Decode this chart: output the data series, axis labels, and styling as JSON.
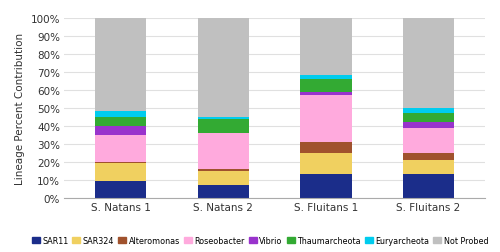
{
  "categories": [
    "S. Natans 1",
    "S. Natans 2",
    "S. Fluitans 1",
    "S. Fluitans 2"
  ],
  "series": {
    "SAR11": [
      9,
      7,
      13,
      13
    ],
    "SAR324": [
      10,
      8,
      12,
      8
    ],
    "Alteromonas": [
      1,
      1,
      6,
      4
    ],
    "Roseobacter": [
      15,
      20,
      26,
      14
    ],
    "Vibrio": [
      5,
      0,
      2,
      3
    ],
    "Thaumarcheota": [
      5,
      8,
      7,
      5
    ],
    "Euryarcheota": [
      3,
      1,
      2,
      3
    ],
    "Not Probed": [
      52,
      55,
      32,
      50
    ]
  },
  "colors": {
    "SAR11": "#1b2d8a",
    "SAR324": "#f0d060",
    "Alteromonas": "#a0522d",
    "Roseobacter": "#ffaadd",
    "Vibrio": "#9933cc",
    "Thaumarcheota": "#33aa33",
    "Euryarcheota": "#00ccee",
    "Not Probed": "#c0c0c0"
  },
  "ylabel": "Lineage Percent Contribution",
  "ylim": [
    0,
    100
  ],
  "ytick_labels": [
    "0%",
    "10%",
    "20%",
    "30%",
    "40%",
    "50%",
    "60%",
    "70%",
    "80%",
    "90%",
    "100%"
  ],
  "ytick_values": [
    0,
    10,
    20,
    30,
    40,
    50,
    60,
    70,
    80,
    90,
    100
  ],
  "bar_width": 0.5,
  "figsize": [
    5.0,
    2.53
  ],
  "dpi": 100,
  "background_color": "#ffffff",
  "grid_color": "#e0e0e0",
  "legend_order": [
    "SAR11",
    "SAR324",
    "Alteromonas",
    "Roseobacter",
    "Vibrio",
    "Thaumarcheota",
    "Euryarcheota",
    "Not Probed"
  ]
}
